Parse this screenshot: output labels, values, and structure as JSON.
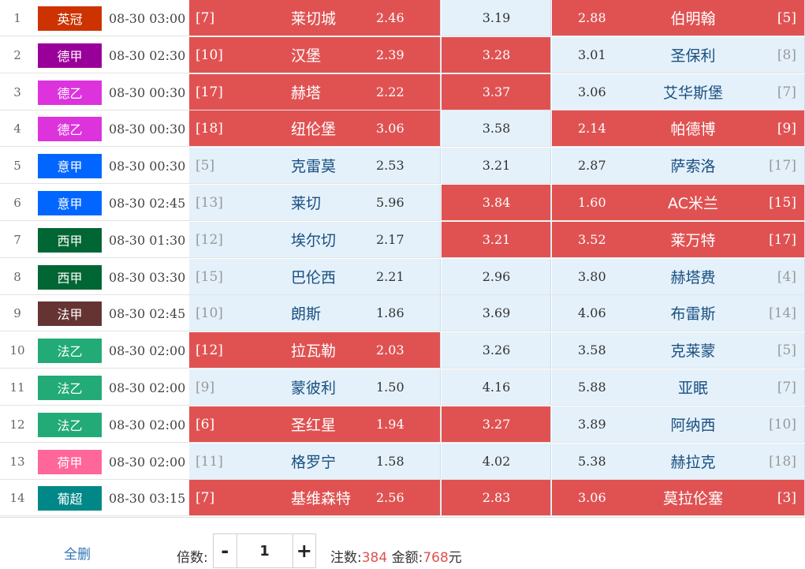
{
  "rows": [
    {
      "num": "1",
      "league": "英冠",
      "league_color": "#cc3300",
      "time": "08-30 03:00",
      "home_rank": "[7]",
      "home": "莱切城",
      "win": "2.46",
      "draw": "3.19",
      "lose": "2.88",
      "away": "伯明翰",
      "away_rank": "[5]",
      "sel": [
        true,
        false,
        true
      ]
    },
    {
      "num": "2",
      "league": "德甲",
      "league_color": "#990099",
      "time": "08-30 02:30",
      "home_rank": "[10]",
      "home": "汉堡",
      "win": "2.39",
      "draw": "3.28",
      "lose": "3.01",
      "away": "圣保利",
      "away_rank": "[8]",
      "sel": [
        true,
        true,
        false
      ]
    },
    {
      "num": "3",
      "league": "德乙",
      "league_color": "#dd33dd",
      "time": "08-30 00:30",
      "home_rank": "[17]",
      "home": "赫塔",
      "win": "2.22",
      "draw": "3.37",
      "lose": "3.06",
      "away": "艾华斯堡",
      "away_rank": "[7]",
      "sel": [
        true,
        true,
        false
      ]
    },
    {
      "num": "4",
      "league": "德乙",
      "league_color": "#dd33dd",
      "time": "08-30 00:30",
      "home_rank": "[18]",
      "home": "纽伦堡",
      "win": "3.06",
      "draw": "3.58",
      "lose": "2.14",
      "away": "帕德博",
      "away_rank": "[9]",
      "sel": [
        true,
        false,
        true
      ]
    },
    {
      "num": "5",
      "league": "意甲",
      "league_color": "#0066ff",
      "time": "08-30 00:30",
      "home_rank": "[5]",
      "home": "克雷莫",
      "win": "2.53",
      "draw": "3.21",
      "lose": "2.87",
      "away": "萨索洛",
      "away_rank": "[17]",
      "sel": [
        false,
        false,
        false
      ]
    },
    {
      "num": "6",
      "league": "意甲",
      "league_color": "#0066ff",
      "time": "08-30 02:45",
      "home_rank": "[13]",
      "home": "莱切",
      "win": "5.96",
      "draw": "3.84",
      "lose": "1.60",
      "away": "AC米兰",
      "away_rank": "[15]",
      "sel": [
        false,
        true,
        true
      ]
    },
    {
      "num": "7",
      "league": "西甲",
      "league_color": "#006633",
      "time": "08-30 01:30",
      "home_rank": "[12]",
      "home": "埃尔切",
      "win": "2.17",
      "draw": "3.21",
      "lose": "3.52",
      "away": "莱万特",
      "away_rank": "[17]",
      "sel": [
        false,
        true,
        true
      ]
    },
    {
      "num": "8",
      "league": "西甲",
      "league_color": "#006633",
      "time": "08-30 03:30",
      "home_rank": "[15]",
      "home": "巴伦西",
      "win": "2.21",
      "draw": "2.96",
      "lose": "3.80",
      "away": "赫塔费",
      "away_rank": "[4]",
      "sel": [
        false,
        false,
        false
      ]
    },
    {
      "num": "9",
      "league": "法甲",
      "league_color": "#663333",
      "time": "08-30 02:45",
      "home_rank": "[10]",
      "home": "朗斯",
      "win": "1.86",
      "draw": "3.69",
      "lose": "4.06",
      "away": "布雷斯",
      "away_rank": "[14]",
      "sel": [
        false,
        false,
        false
      ]
    },
    {
      "num": "10",
      "league": "法乙",
      "league_color": "#22aa77",
      "time": "08-30 02:00",
      "home_rank": "[12]",
      "home": "拉瓦勒",
      "win": "2.03",
      "draw": "3.26",
      "lose": "3.58",
      "away": "克莱蒙",
      "away_rank": "[5]",
      "sel": [
        true,
        false,
        false
      ]
    },
    {
      "num": "11",
      "league": "法乙",
      "league_color": "#22aa77",
      "time": "08-30 02:00",
      "home_rank": "[9]",
      "home": "蒙彼利",
      "win": "1.50",
      "draw": "4.16",
      "lose": "5.88",
      "away": "亚眠",
      "away_rank": "[7]",
      "sel": [
        false,
        false,
        false
      ]
    },
    {
      "num": "12",
      "league": "法乙",
      "league_color": "#22aa77",
      "time": "08-30 02:00",
      "home_rank": "[6]",
      "home": "圣红星",
      "win": "1.94",
      "draw": "3.27",
      "lose": "3.89",
      "away": "阿纳西",
      "away_rank": "[10]",
      "sel": [
        true,
        true,
        false
      ]
    },
    {
      "num": "13",
      "league": "荷甲",
      "league_color": "#ff6699",
      "time": "08-30 02:00",
      "home_rank": "[11]",
      "home": "格罗宁",
      "win": "1.58",
      "draw": "4.02",
      "lose": "5.38",
      "away": "赫拉克",
      "away_rank": "[18]",
      "sel": [
        false,
        false,
        false
      ]
    },
    {
      "num": "14",
      "league": "葡超",
      "league_color": "#008888",
      "time": "08-30 03:15",
      "home_rank": "[7]",
      "home": "基维森特",
      "win": "2.56",
      "draw": "2.83",
      "lose": "3.06",
      "away": "莫拉伦塞",
      "away_rank": "[3]",
      "sel": [
        true,
        true,
        true
      ]
    }
  ],
  "footer": {
    "clear_all": "全删",
    "multiplier_label": "倍数:",
    "minus_icon": "minus-icon",
    "plus_icon": "plus-icon",
    "multiplier_value": "1",
    "bets_label": "注数:",
    "bets_value": "384",
    "amount_label": "金额:",
    "amount_value": "768",
    "amount_unit": "元"
  },
  "colors": {
    "selected": "#e05252",
    "unselected": "#e4f1fb",
    "link": "#2f72b8"
  }
}
